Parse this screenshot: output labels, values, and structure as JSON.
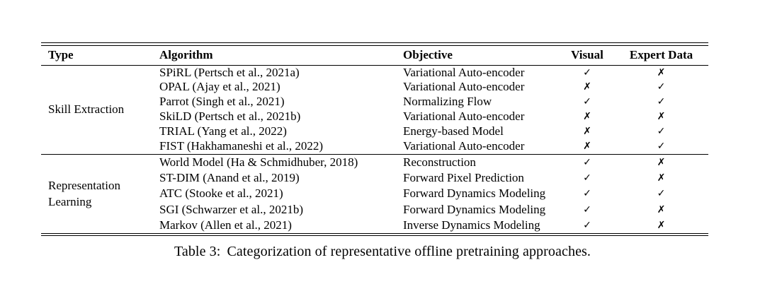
{
  "page": {
    "background": "#ffffff",
    "text_color": "#000000"
  },
  "glyphs": {
    "check": "✓",
    "cross": "✗"
  },
  "table": {
    "headers": [
      "Type",
      "Algorithm",
      "Objective",
      "Visual",
      "Expert Data"
    ],
    "groups": [
      {
        "type": "Skill Extraction",
        "rows": [
          {
            "algorithm": "SPiRL (Pertsch et al., 2021a)",
            "objective": "Variational Auto-encoder",
            "visual": "✓",
            "expert_data": "✗"
          },
          {
            "algorithm": "OPAL (Ajay et al., 2021)",
            "objective": "Variational Auto-encoder",
            "visual": "✗",
            "expert_data": "✓"
          },
          {
            "algorithm": "Parrot (Singh et al., 2021)",
            "objective": "Normalizing Flow",
            "visual": "✓",
            "expert_data": "✓"
          },
          {
            "algorithm": "SkiLD (Pertsch et al., 2021b)",
            "objective": "Variational Auto-encoder",
            "visual": "✗",
            "expert_data": "✗"
          },
          {
            "algorithm": "TRIAL (Yang et al., 2022)",
            "objective": "Energy-based Model",
            "visual": "✗",
            "expert_data": "✓"
          },
          {
            "algorithm": "FIST (Hakhamaneshi et al., 2022)",
            "objective": "Variational Auto-encoder",
            "visual": "✗",
            "expert_data": "✓"
          }
        ]
      },
      {
        "type": "Representation Learning",
        "rows": [
          {
            "algorithm": "World Model (Ha & Schmidhuber, 2018)",
            "objective": "Reconstruction",
            "visual": "✓",
            "expert_data": "✗"
          },
          {
            "algorithm": "ST-DIM (Anand et al., 2019)",
            "objective": "Forward Pixel Prediction",
            "visual": "✓",
            "expert_data": "✗"
          },
          {
            "algorithm": "ATC (Stooke et al., 2021)",
            "objective": "Forward Dynamics Modeling",
            "visual": "✓",
            "expert_data": "✓"
          },
          {
            "algorithm": "SGI (Schwarzer et al., 2021b)",
            "objective": "Forward Dynamics Modeling",
            "visual": "✓",
            "expert_data": "✗"
          },
          {
            "algorithm": "Markov (Allen et al., 2021)",
            "objective": "Inverse Dynamics Modeling",
            "visual": "✓",
            "expert_data": "✗"
          }
        ]
      }
    ]
  },
  "caption": {
    "label": "Table 3:",
    "text": "Categorization of representative offline pretraining approaches."
  }
}
